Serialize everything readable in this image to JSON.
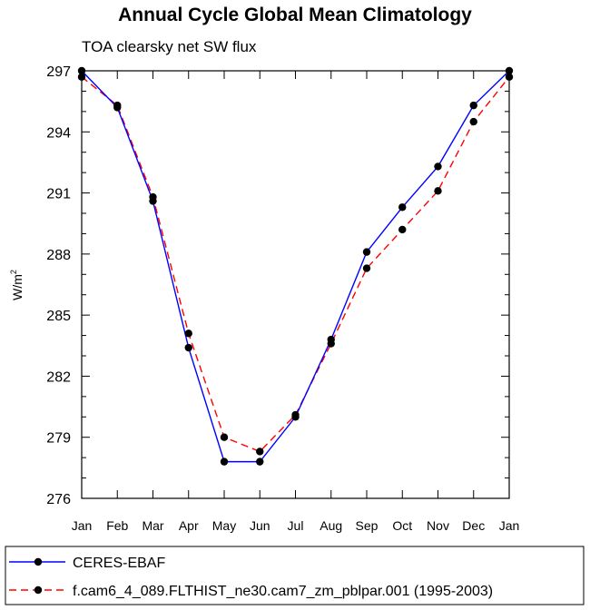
{
  "chart_data": {
    "type": "line",
    "title": "Annual Cycle Global Mean Climatology",
    "subtitle": "TOA clearsky net SW flux",
    "ylabel": "W/m",
    "ylabel_sup": "2",
    "ylim": [
      276,
      297
    ],
    "yticks": [
      "276",
      "279",
      "282",
      "285",
      "288",
      "291",
      "294",
      "297"
    ],
    "categories": [
      "Jan",
      "Feb",
      "Mar",
      "Apr",
      "May",
      "Jun",
      "Jul",
      "Aug",
      "Sep",
      "Oct",
      "Nov",
      "Dec",
      "Jan"
    ],
    "series": [
      {
        "name": "CERES-EBAF",
        "color": "#0000ff",
        "dash": "solid",
        "values": [
          297.0,
          295.2,
          290.6,
          283.4,
          277.8,
          277.8,
          280.0,
          283.8,
          288.1,
          290.3,
          292.3,
          295.3,
          297.0
        ]
      },
      {
        "name": "f.cam6_4_089.FLTHIST_ne30.cam7_zm_pblpar.001 (1995-2003)",
        "color": "#ff0000",
        "dash": "dashed",
        "values": [
          296.7,
          295.3,
          290.8,
          284.1,
          279.0,
          278.3,
          280.1,
          283.6,
          287.3,
          289.2,
          291.1,
          294.5,
          296.7
        ]
      }
    ],
    "grid": false,
    "legend_position": "bottom"
  }
}
